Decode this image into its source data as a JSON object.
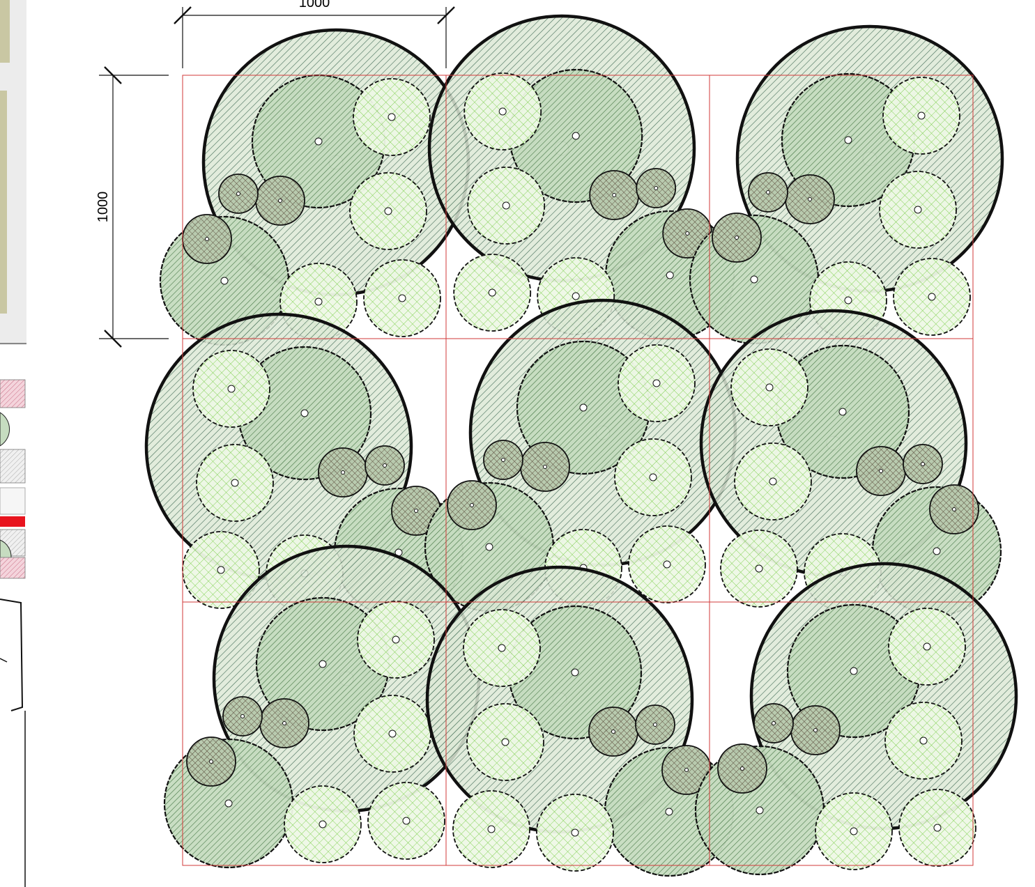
{
  "dimensions": {
    "horizontal_label": "1000",
    "vertical_label": "1000"
  },
  "grid": {
    "rows": 3,
    "cols": 3,
    "line_color": "#d23a3a"
  },
  "colors": {
    "tree_large_fill": "#dde9d6",
    "tree_large_hatch": "#2f5d45",
    "tree_medium_fill": "#c6dcc0",
    "tree_medium_hatch": "#3b6f3b",
    "tree_light_fill": "#eef8e6",
    "tree_light_hatch": "#7fd04f",
    "shrub_fill": "#b7c9ad",
    "shrub_hatch": "#5a4a3a",
    "outline": "#111111"
  },
  "left_strip": {
    "accent_red": "#e8141e",
    "accent_pink": "#e9a6b5",
    "accent_olive": "#c9c7a3"
  }
}
